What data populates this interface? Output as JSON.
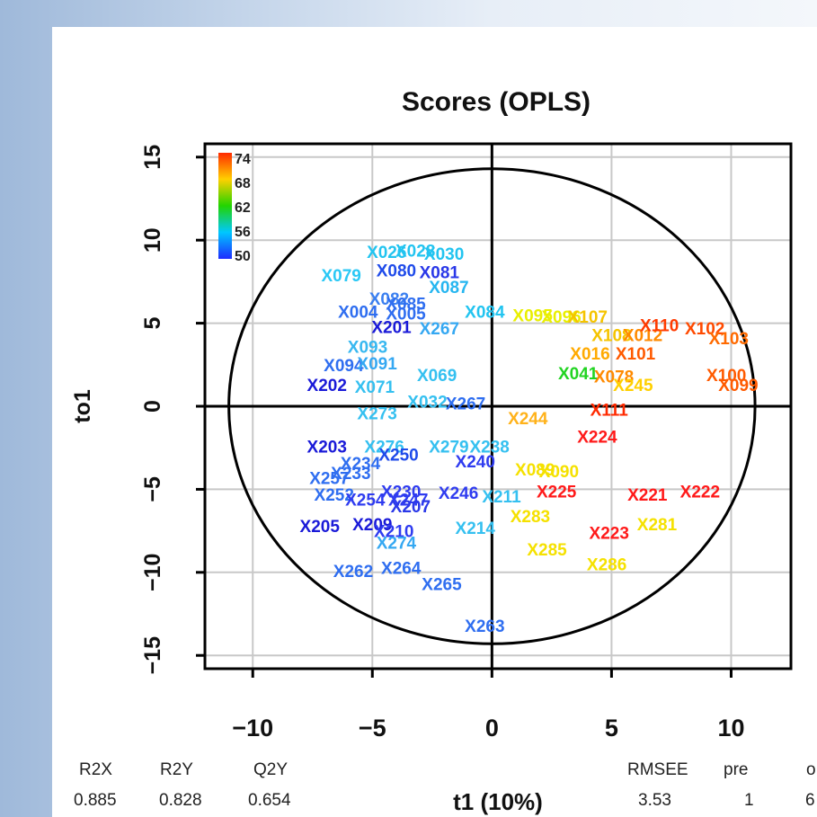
{
  "chart_data": {
    "type": "scatter",
    "title": "Scores (OPLS)",
    "xlabel": "t1 (10%)",
    "ylabel": "to1",
    "xlim": [
      -12,
      12.5
    ],
    "ylim": [
      -15.8,
      15.8
    ],
    "xticks": [
      -10,
      -5,
      0,
      5,
      10
    ],
    "yticks": [
      -15,
      -10,
      -5,
      0,
      5,
      10,
      15
    ],
    "grid": true,
    "ellipse": {
      "center": [
        0,
        0
      ],
      "rx": 11.0,
      "ry": 14.3
    },
    "legend": {
      "placement": "top-left",
      "labels": [
        "74",
        "68",
        "62",
        "56",
        "50"
      ],
      "colors": [
        "#ff2a00",
        "#ffd000",
        "#22d400",
        "#00c8ff",
        "#1e2cff"
      ]
    },
    "points": [
      {
        "label": "X026",
        "x": -4.4,
        "y": 9.3,
        "color": "#22c4f0"
      },
      {
        "label": "X028",
        "x": -3.2,
        "y": 9.4,
        "color": "#22c4f0"
      },
      {
        "label": "X030",
        "x": -2.0,
        "y": 9.2,
        "color": "#22c4f0"
      },
      {
        "label": "X079",
        "x": -6.3,
        "y": 7.9,
        "color": "#2ac8f5"
      },
      {
        "label": "X080",
        "x": -4.0,
        "y": 8.2,
        "color": "#1f4bea"
      },
      {
        "label": "X081",
        "x": -2.2,
        "y": 8.1,
        "color": "#2a38e8"
      },
      {
        "label": "X087",
        "x": -1.8,
        "y": 7.2,
        "color": "#26b6f0"
      },
      {
        "label": "X082",
        "x": -4.3,
        "y": 6.5,
        "color": "#3a7ff0"
      },
      {
        "label": "X085",
        "x": -3.6,
        "y": 6.2,
        "color": "#2f6ef0"
      },
      {
        "label": "X084",
        "x": -0.3,
        "y": 5.7,
        "color": "#22c4f0"
      },
      {
        "label": "X004",
        "x": -5.6,
        "y": 5.7,
        "color": "#2f6ef0"
      },
      {
        "label": "X005",
        "x": -3.6,
        "y": 5.6,
        "color": "#2f6ef0"
      },
      {
        "label": "X201",
        "x": -4.2,
        "y": 4.8,
        "color": "#1a1ad8"
      },
      {
        "label": "X267",
        "x": -2.2,
        "y": 4.7,
        "color": "#35a8f2"
      },
      {
        "label": "X093",
        "x": -5.2,
        "y": 3.6,
        "color": "#38b8f0"
      },
      {
        "label": "X094",
        "x": -6.2,
        "y": 2.5,
        "color": "#2f6ef0"
      },
      {
        "label": "X091",
        "x": -4.8,
        "y": 2.6,
        "color": "#35a8f2"
      },
      {
        "label": "X202",
        "x": -6.9,
        "y": 1.3,
        "color": "#1a1ad8"
      },
      {
        "label": "X071",
        "x": -4.9,
        "y": 1.2,
        "color": "#35c0f0"
      },
      {
        "label": "X069",
        "x": -2.3,
        "y": 1.9,
        "color": "#35c0f0"
      },
      {
        "label": "X273",
        "x": -4.8,
        "y": -0.4,
        "color": "#35c0f0"
      },
      {
        "label": "X032",
        "x": -2.7,
        "y": 0.3,
        "color": "#35c0f0"
      },
      {
        "label": "X267",
        "x": -1.1,
        "y": 0.2,
        "color": "#2f6ef0"
      },
      {
        "label": "X244",
        "x": 1.5,
        "y": -0.7,
        "color": "#ffb21a"
      },
      {
        "label": "X203",
        "x": -6.9,
        "y": -2.4,
        "color": "#1a1ad8"
      },
      {
        "label": "X276",
        "x": -4.5,
        "y": -2.4,
        "color": "#35c0f0"
      },
      {
        "label": "X279",
        "x": -1.8,
        "y": -2.4,
        "color": "#35c0f0"
      },
      {
        "label": "X238",
        "x": -0.1,
        "y": -2.4,
        "color": "#35c0f0"
      },
      {
        "label": "X234",
        "x": -5.5,
        "y": -3.4,
        "color": "#2f6ef0"
      },
      {
        "label": "X250",
        "x": -3.9,
        "y": -2.9,
        "color": "#1f4bea"
      },
      {
        "label": "X240",
        "x": -0.7,
        "y": -3.3,
        "color": "#2f3cf0"
      },
      {
        "label": "X233",
        "x": -5.9,
        "y": -4.0,
        "color": "#2f6ef0"
      },
      {
        "label": "X257",
        "x": -6.8,
        "y": -4.3,
        "color": "#2f6ef0"
      },
      {
        "label": "X252",
        "x": -6.6,
        "y": -5.3,
        "color": "#2f6ef0"
      },
      {
        "label": "X230",
        "x": -3.8,
        "y": -5.1,
        "color": "#2f3cf0"
      },
      {
        "label": "X246",
        "x": -1.4,
        "y": -5.2,
        "color": "#2f3cf0"
      },
      {
        "label": "X247",
        "x": -3.5,
        "y": -5.6,
        "color": "#2f3cf0"
      },
      {
        "label": "X254",
        "x": -5.3,
        "y": -5.6,
        "color": "#2f3cf0"
      },
      {
        "label": "X207",
        "x": -3.4,
        "y": -6.0,
        "color": "#2a38e8"
      },
      {
        "label": "X211",
        "x": 0.4,
        "y": -5.4,
        "color": "#35c0f0"
      },
      {
        "label": "X089",
        "x": 1.8,
        "y": -3.8,
        "color": "#f5e100"
      },
      {
        "label": "X090",
        "x": 2.8,
        "y": -3.9,
        "color": "#f5e100"
      },
      {
        "label": "X225",
        "x": 2.7,
        "y": -5.1,
        "color": "#ff1a1a"
      },
      {
        "label": "X221",
        "x": 6.5,
        "y": -5.3,
        "color": "#ff1a1a"
      },
      {
        "label": "X222",
        "x": 8.7,
        "y": -5.1,
        "color": "#ff1a1a"
      },
      {
        "label": "X205",
        "x": -7.2,
        "y": -7.2,
        "color": "#1a1ad8"
      },
      {
        "label": "X209",
        "x": -5.0,
        "y": -7.1,
        "color": "#1a1ad8"
      },
      {
        "label": "X210",
        "x": -4.1,
        "y": -7.5,
        "color": "#2f3cf0"
      },
      {
        "label": "X274",
        "x": -4.0,
        "y": -8.2,
        "color": "#35a8f2"
      },
      {
        "label": "X214",
        "x": -0.7,
        "y": -7.3,
        "color": "#35c0f0"
      },
      {
        "label": "X283",
        "x": 1.6,
        "y": -6.6,
        "color": "#f5e100"
      },
      {
        "label": "X281",
        "x": 6.9,
        "y": -7.1,
        "color": "#f5e100"
      },
      {
        "label": "X223",
        "x": 4.9,
        "y": -7.6,
        "color": "#ff1a1a"
      },
      {
        "label": "X286",
        "x": 4.8,
        "y": -9.5,
        "color": "#f5e100"
      },
      {
        "label": "X285",
        "x": 2.3,
        "y": -8.6,
        "color": "#f5e100"
      },
      {
        "label": "X262",
        "x": -5.8,
        "y": -9.9,
        "color": "#2f6ef0"
      },
      {
        "label": "X264",
        "x": -3.8,
        "y": -9.7,
        "color": "#2f6ef0"
      },
      {
        "label": "X265",
        "x": -2.1,
        "y": -10.7,
        "color": "#2f6ef0"
      },
      {
        "label": "X263",
        "x": -0.3,
        "y": -13.2,
        "color": "#2f6ef0"
      },
      {
        "label": "X095",
        "x": 1.7,
        "y": 5.5,
        "color": "#e9ef00"
      },
      {
        "label": "X096",
        "x": 2.9,
        "y": 5.4,
        "color": "#e9ef00"
      },
      {
        "label": "X107",
        "x": 4.0,
        "y": 5.4,
        "color": "#f5c400"
      },
      {
        "label": "X108",
        "x": 5.0,
        "y": 4.3,
        "color": "#f5c400"
      },
      {
        "label": "X012",
        "x": 6.3,
        "y": 4.3,
        "color": "#ff8a00"
      },
      {
        "label": "X110",
        "x": 7.0,
        "y": 4.9,
        "color": "#ff3a00"
      },
      {
        "label": "X102",
        "x": 8.9,
        "y": 4.7,
        "color": "#ff4a00"
      },
      {
        "label": "X103",
        "x": 9.9,
        "y": 4.1,
        "color": "#ff6a00"
      },
      {
        "label": "X101",
        "x": 6.0,
        "y": 3.2,
        "color": "#ff5a00"
      },
      {
        "label": "X016",
        "x": 4.1,
        "y": 3.2,
        "color": "#ffaa00"
      },
      {
        "label": "X041",
        "x": 3.6,
        "y": 2.0,
        "color": "#22d422"
      },
      {
        "label": "X078",
        "x": 5.1,
        "y": 1.8,
        "color": "#ff8a00"
      },
      {
        "label": "X245",
        "x": 5.9,
        "y": 1.3,
        "color": "#ffd000"
      },
      {
        "label": "X100",
        "x": 9.8,
        "y": 1.9,
        "color": "#ff5a00"
      },
      {
        "label": "X099",
        "x": 10.3,
        "y": 1.3,
        "color": "#ff5a00"
      },
      {
        "label": "X111",
        "x": 4.9,
        "y": -0.2,
        "color": "#ff2a00"
      },
      {
        "label": "X224",
        "x": 4.4,
        "y": -1.8,
        "color": "#ff1a1a"
      }
    ]
  },
  "stats": {
    "headers": [
      "R2X",
      "R2Y",
      "Q2Y",
      "RMSEE",
      "pre",
      "o"
    ],
    "values": [
      "0.885",
      "0.828",
      "0.654",
      "3.53",
      "1",
      "6"
    ]
  }
}
